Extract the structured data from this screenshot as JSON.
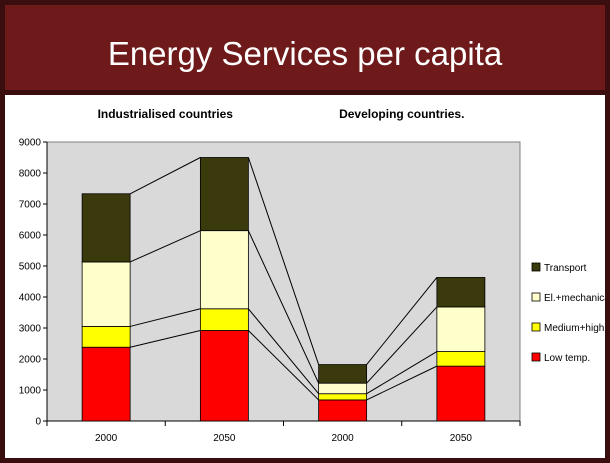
{
  "slide": {
    "title": "Energy Services per capita"
  },
  "chart_data": {
    "type": "bar",
    "stacked": true,
    "categories": [
      "2000",
      "2050",
      "2000",
      "2050"
    ],
    "groups": [
      "Industrialised countries",
      "Developing countries."
    ],
    "series": [
      {
        "name": "Low temp.",
        "color": "#ff0000",
        "values": [
          2380,
          2920,
          680,
          1770
        ]
      },
      {
        "name": "Medium+high t.",
        "color": "#ffff00",
        "values": [
          670,
          700,
          200,
          470
        ]
      },
      {
        "name": "El.+mechanical",
        "color": "#ffffcc",
        "values": [
          2080,
          2520,
          340,
          1440
        ]
      },
      {
        "name": "Transport",
        "color": "#3b3a0c",
        "values": [
          2200,
          2360,
          600,
          950
        ]
      }
    ],
    "ylim": [
      0,
      9000
    ],
    "yticks": [
      0,
      1000,
      2000,
      3000,
      4000,
      5000,
      6000,
      7000,
      8000,
      9000
    ],
    "legend_placement": "right",
    "plot_background": "#d9d9d9",
    "connector_lines": true,
    "grid": false
  }
}
